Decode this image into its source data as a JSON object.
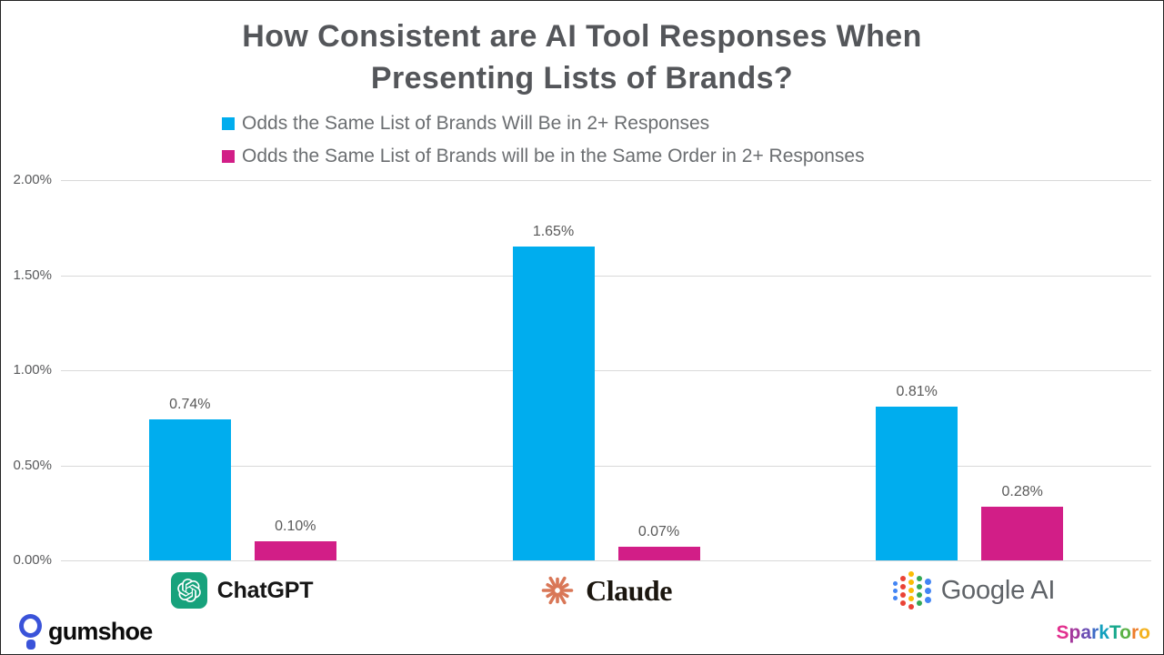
{
  "title": {
    "line1": "How Consistent are AI Tool Responses When",
    "line2": "Presenting Lists of Brands?"
  },
  "chart_data": {
    "type": "bar",
    "title": "How Consistent are AI Tool Responses When Presenting Lists of Brands?",
    "categories": [
      "ChatGPT",
      "Claude",
      "Google AI"
    ],
    "series": [
      {
        "name": "Odds the Same List of Brands Will Be in 2+ Responses",
        "color": "#00ADEE",
        "values": [
          0.74,
          1.65,
          0.81
        ],
        "labels": [
          "0.74%",
          "1.65%",
          "0.81%"
        ]
      },
      {
        "name": "Odds the Same List of Brands will be in the Same Order in 2+ Responses",
        "color": "#D21E87",
        "values": [
          0.1,
          0.07,
          0.28
        ],
        "labels": [
          "0.10%",
          "0.07%",
          "0.28%"
        ]
      }
    ],
    "yticks": [
      {
        "label": "2.00%",
        "value": 2.0
      },
      {
        "label": "1.50%",
        "value": 1.5
      },
      {
        "label": "1.00%",
        "value": 1.0
      },
      {
        "label": "0.50%",
        "value": 0.5
      },
      {
        "label": "0.00%",
        "value": 0.0
      }
    ],
    "ylim": [
      0,
      2
    ],
    "grid": true,
    "legend_position": "top-center",
    "xlabel": "",
    "ylabel": ""
  },
  "icons": {
    "chatgpt": "openai-knot-icon",
    "claude": "claude-starburst-icon",
    "google_ai": "google-dots-icon",
    "gumshoe": "footprint-icon"
  },
  "footer": {
    "gumshoe_label": "gumshoe",
    "sparktoro": {
      "letters": [
        {
          "ch": "S",
          "color": "#E2308E"
        },
        {
          "ch": "p",
          "color": "#A3379C"
        },
        {
          "ch": "a",
          "color": "#6A4CB3"
        },
        {
          "ch": "r",
          "color": "#3D6BC6"
        },
        {
          "ch": "k",
          "color": "#13A0BE"
        },
        {
          "ch": "T",
          "color": "#18A88D"
        },
        {
          "ch": "o",
          "color": "#5CB247"
        },
        {
          "ch": "r",
          "color": "#ED7D2B"
        },
        {
          "ch": "o",
          "color": "#F4B21F"
        }
      ]
    }
  }
}
